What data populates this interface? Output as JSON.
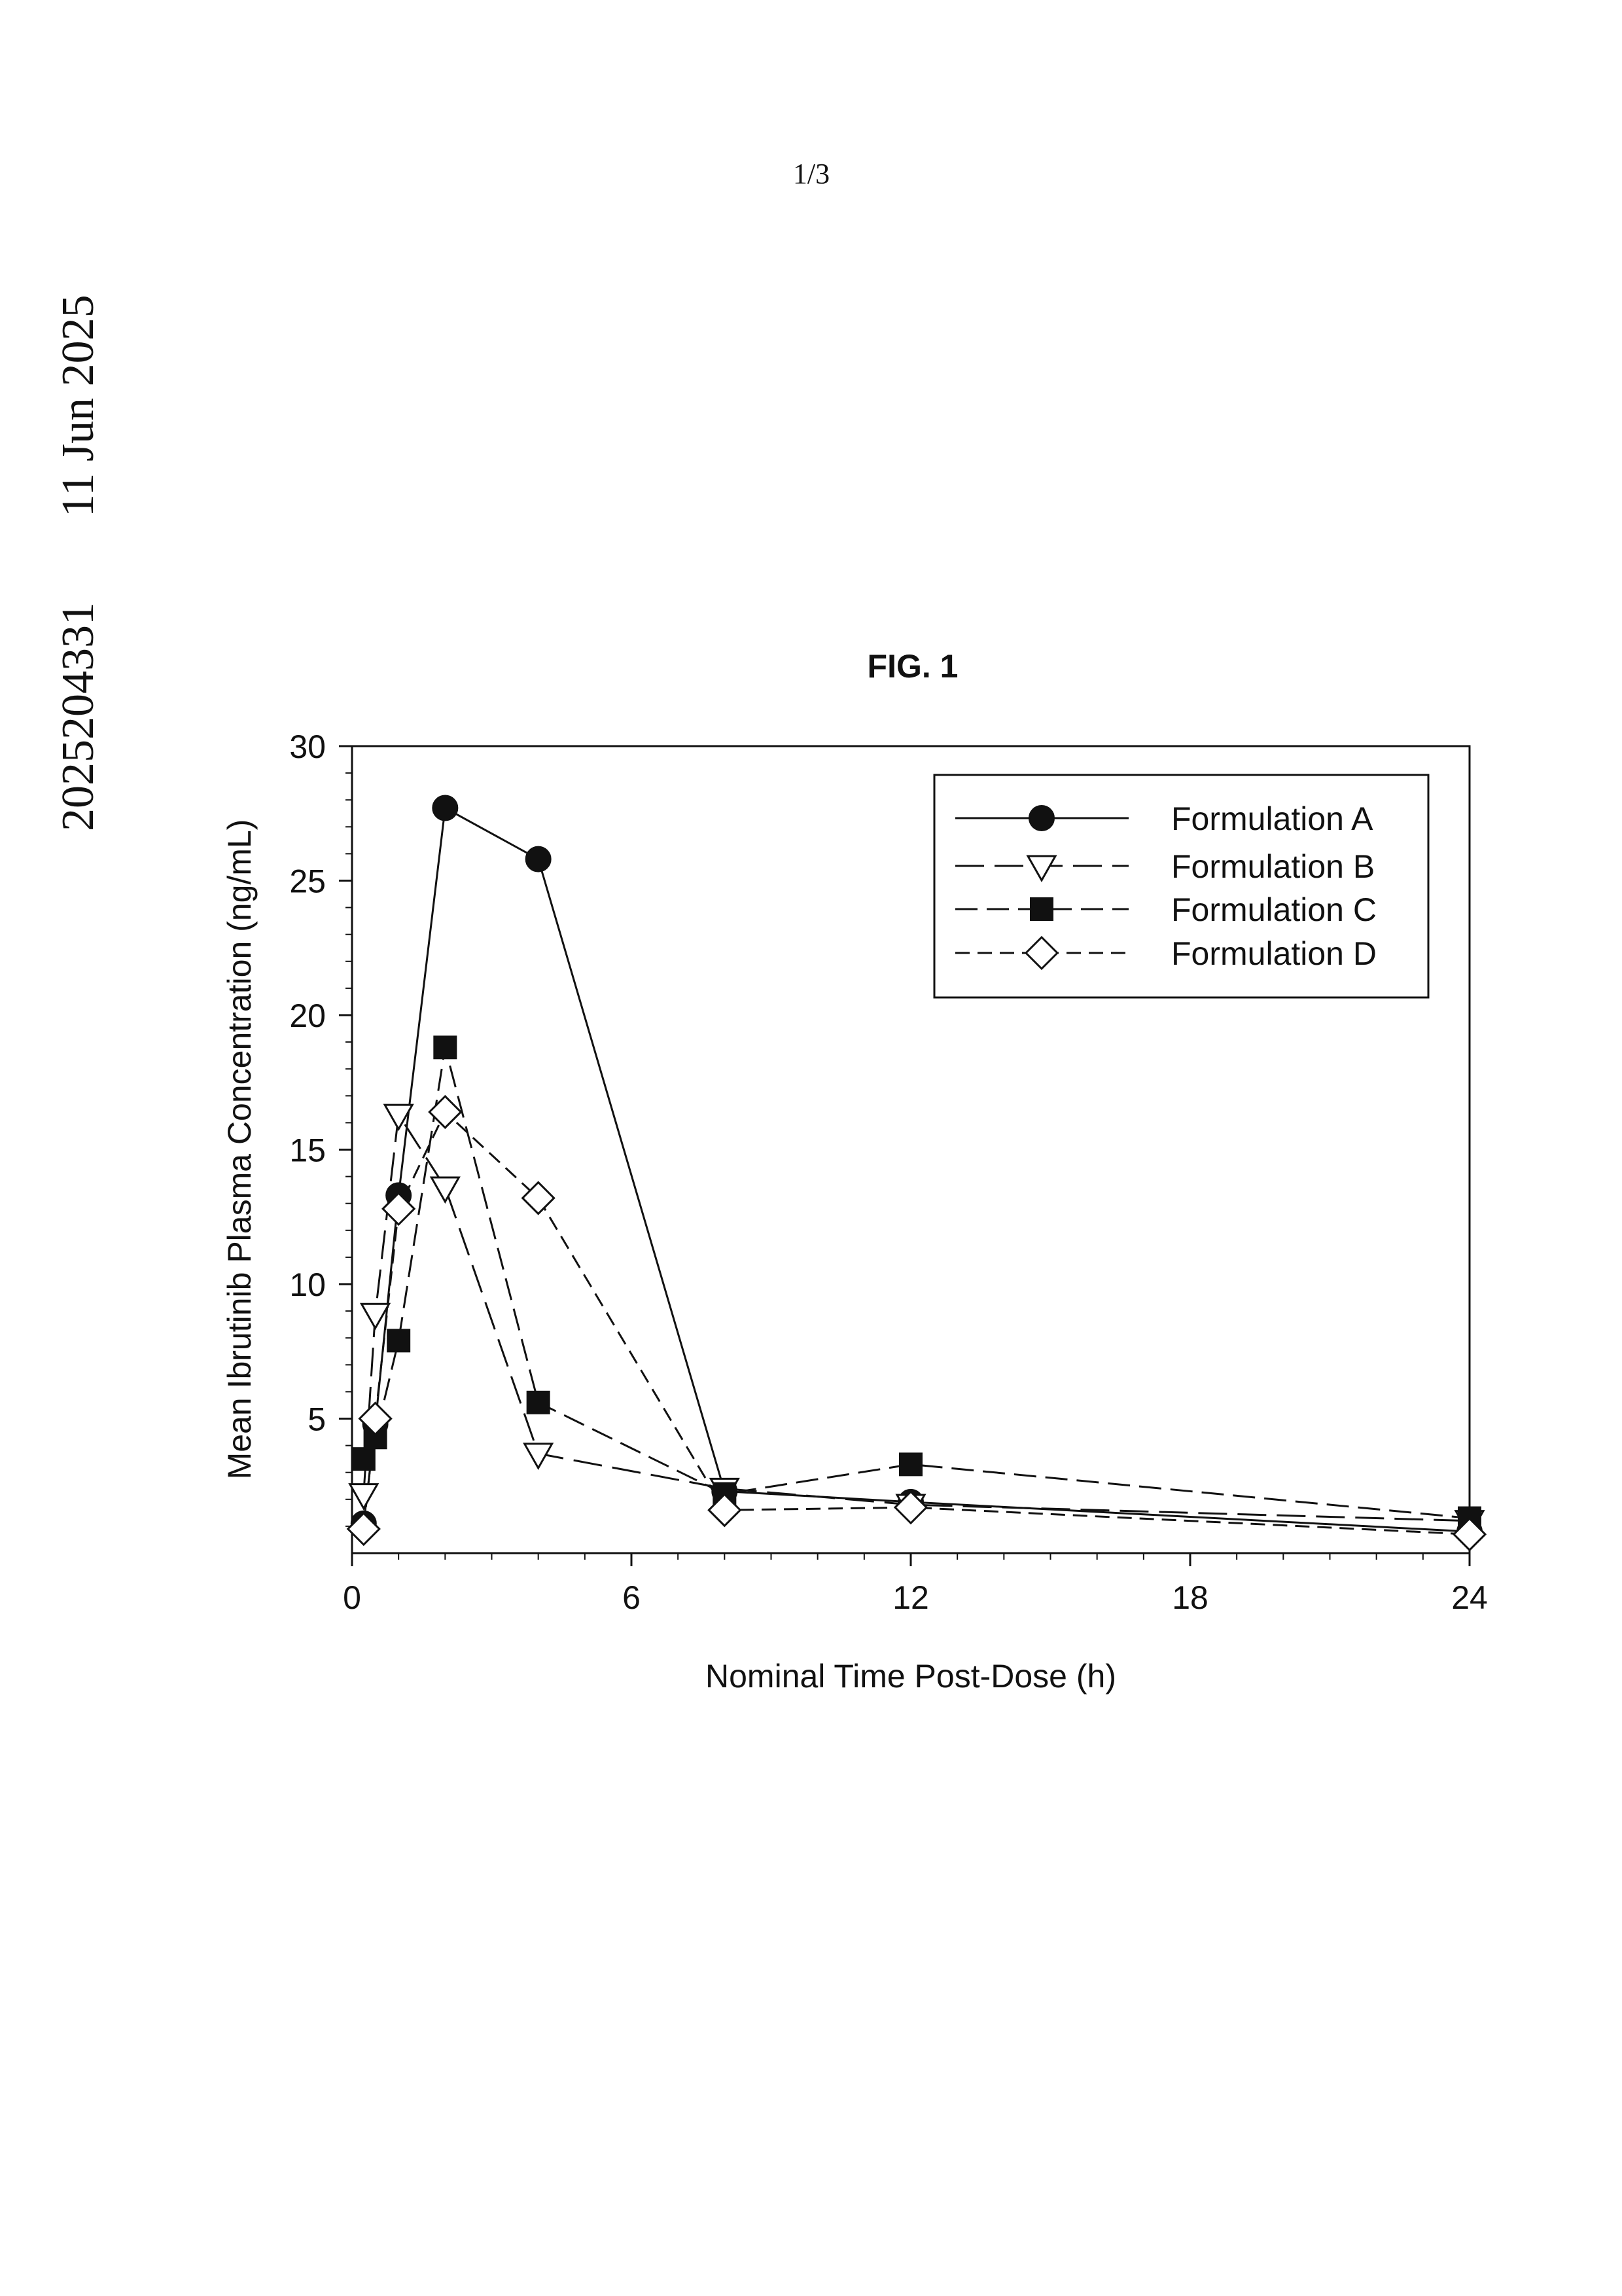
{
  "page_number": "1/3",
  "stamp": {
    "document_number": "2025204331",
    "date": "11 Jun 2025"
  },
  "chart_data": {
    "type": "line",
    "title": "FIG. 1",
    "xlabel": "Nominal Time Post-Dose (h)",
    "ylabel": "Mean Ibrutinib Plasma Concentration (ng/mL)",
    "xlim": [
      0,
      24
    ],
    "ylim": [
      0,
      30
    ],
    "x_ticks": [
      0,
      6,
      12,
      18,
      24
    ],
    "y_ticks": [
      5,
      10,
      15,
      20,
      25,
      30
    ],
    "grid": false,
    "legend_position": "top-right",
    "series": [
      {
        "name": "Formulation A",
        "marker": "filled-circle",
        "line": "solid",
        "x": [
          0.25,
          0.5,
          1,
          2,
          4,
          8,
          12,
          24
        ],
        "y": [
          1.1,
          4.8,
          13.3,
          27.7,
          25.8,
          2.3,
          1.9,
          0.8
        ]
      },
      {
        "name": "Formulation B",
        "marker": "open-triangle-down",
        "line": "long-dash",
        "x": [
          0.25,
          0.5,
          1,
          2,
          4,
          8,
          12,
          24
        ],
        "y": [
          2.2,
          8.9,
          16.3,
          13.6,
          3.7,
          2.4,
          1.8,
          1.2
        ]
      },
      {
        "name": "Formulation C",
        "marker": "filled-square",
        "line": "medium-dash",
        "x": [
          0.25,
          0.5,
          1,
          2,
          4,
          8,
          12,
          24
        ],
        "y": [
          3.5,
          4.3,
          7.9,
          18.8,
          5.6,
          2.2,
          3.3,
          1.3
        ]
      },
      {
        "name": "Formulation D",
        "marker": "open-diamond",
        "line": "short-dash",
        "x": [
          0.25,
          0.5,
          1,
          2,
          4,
          8,
          12,
          24
        ],
        "y": [
          0.9,
          5.0,
          12.8,
          16.4,
          13.2,
          1.6,
          1.7,
          0.7
        ]
      }
    ]
  }
}
